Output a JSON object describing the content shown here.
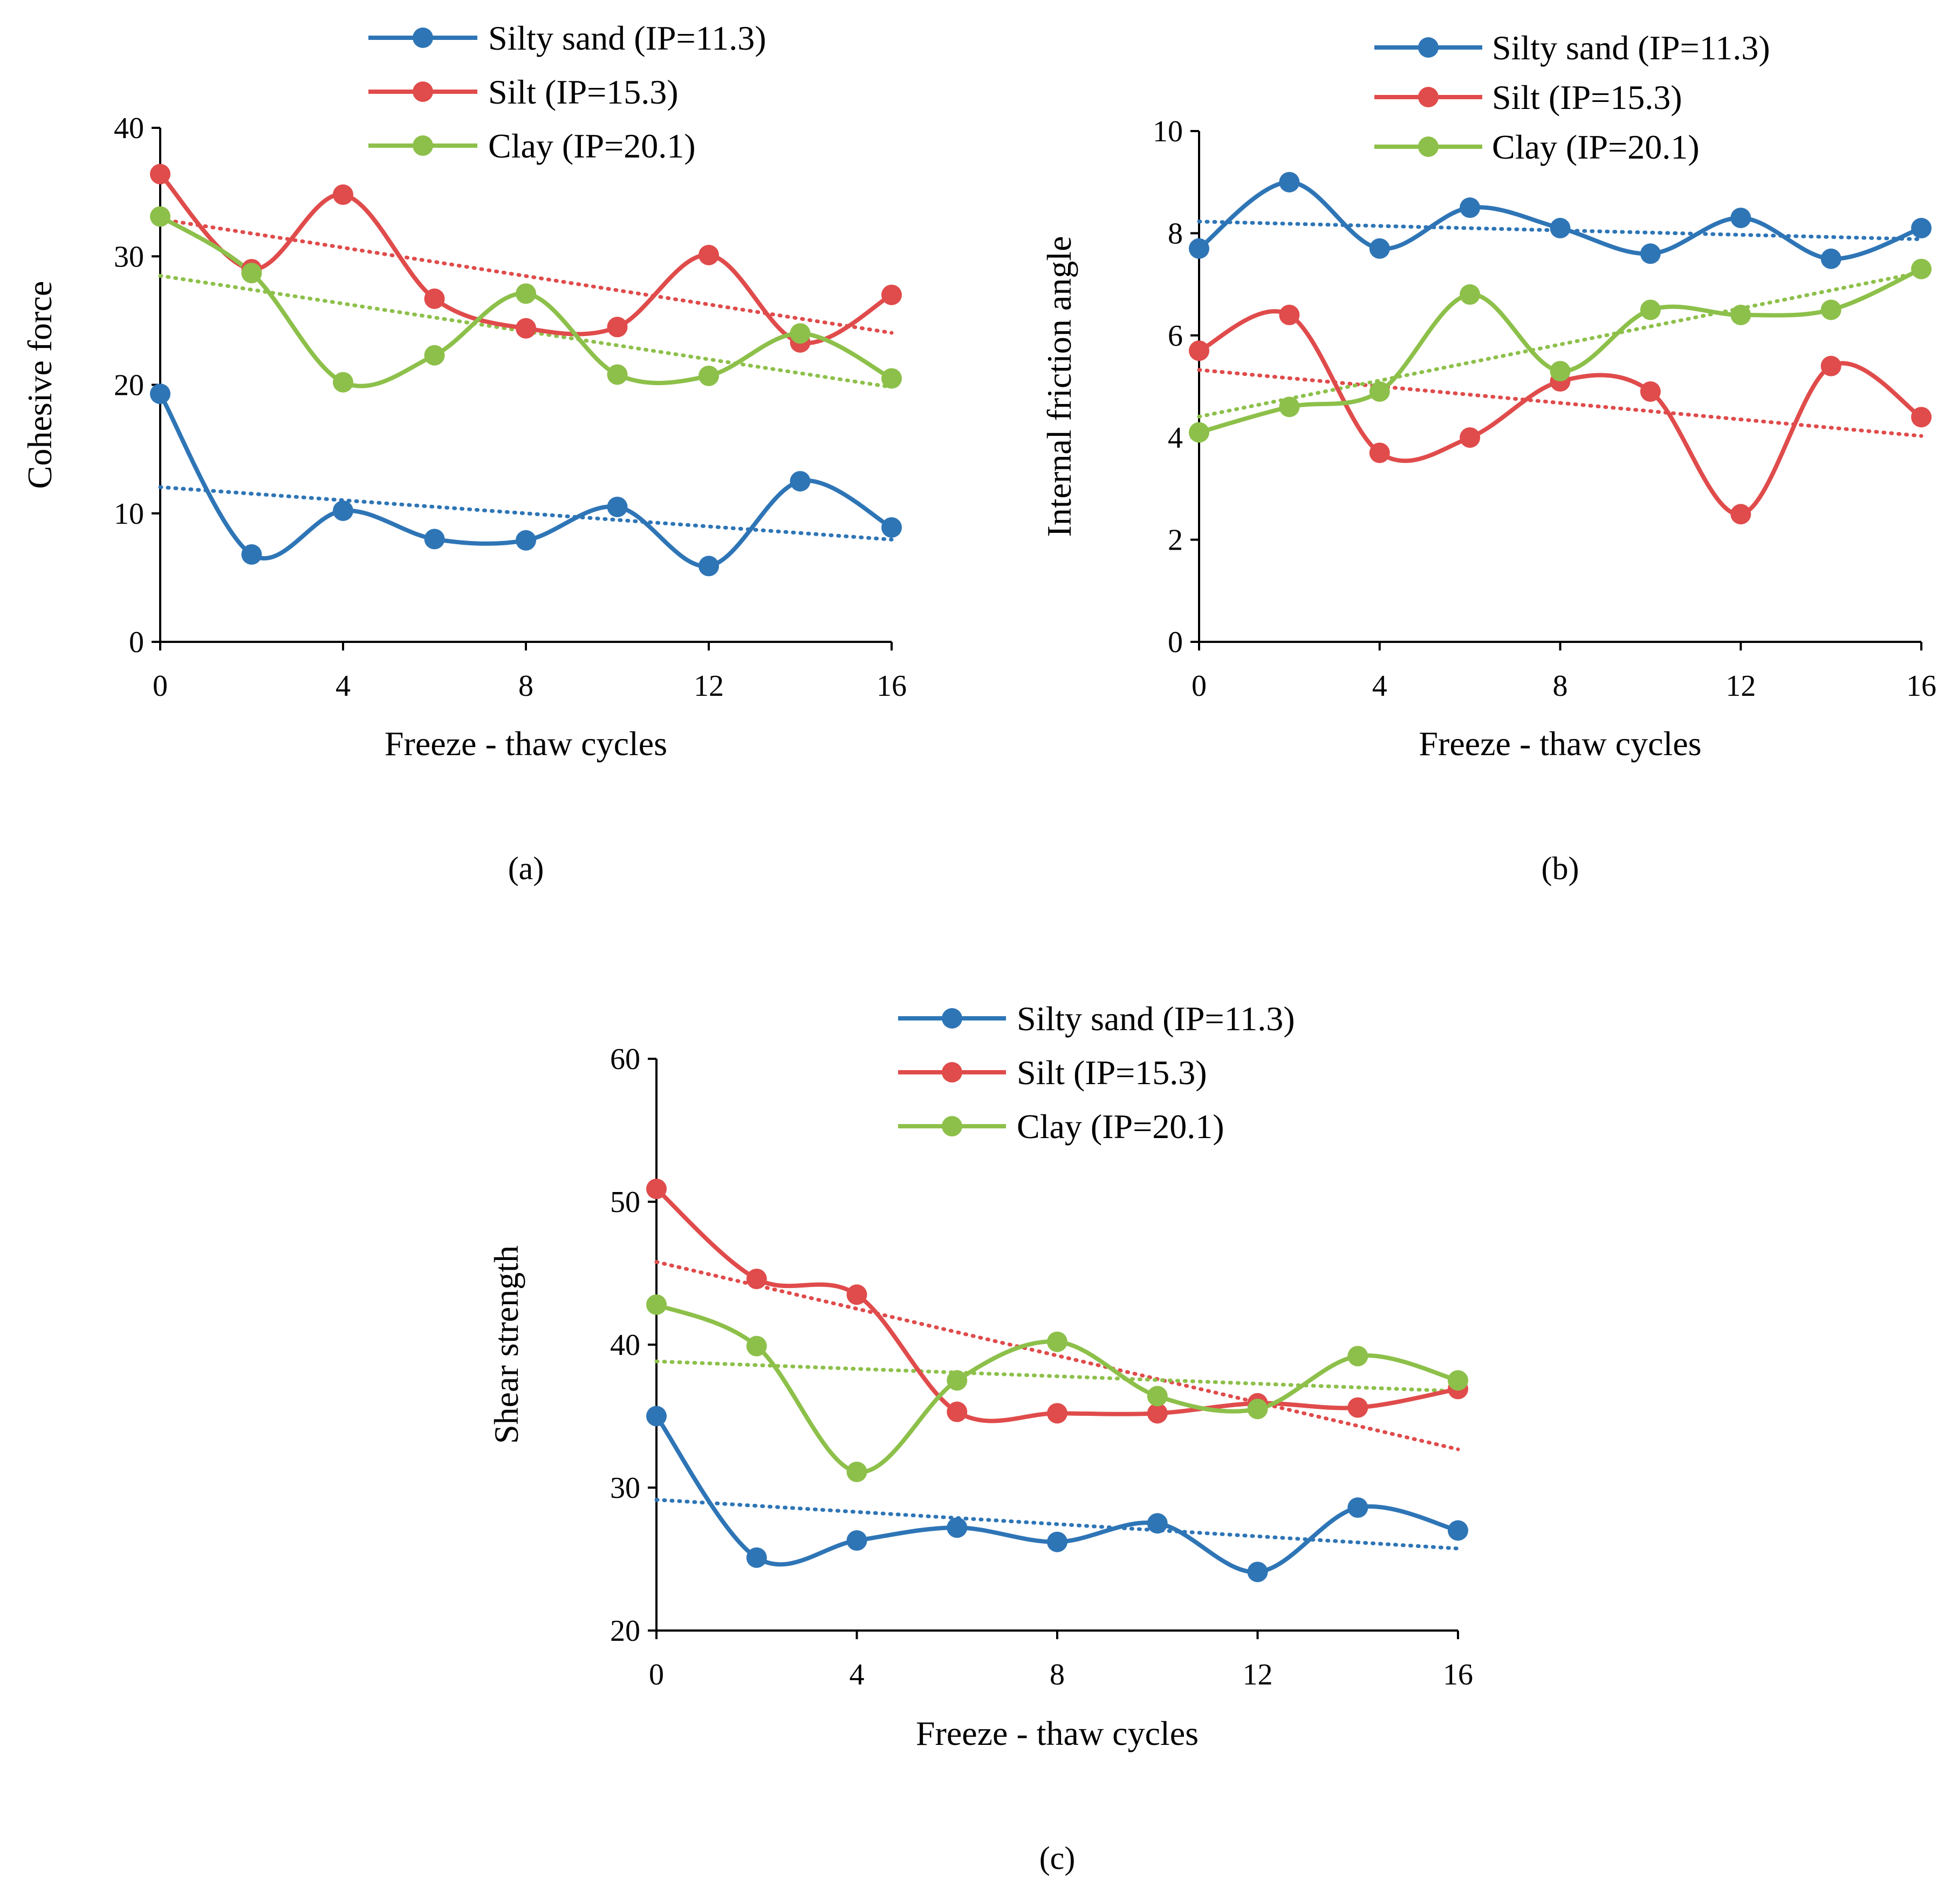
{
  "colors": {
    "silty_sand": "#2E75B6",
    "silt": "#E04B4B",
    "clay": "#8DC04A",
    "axis": "#000000"
  },
  "chart_data": [
    {
      "type": "line",
      "panel_label": "(a)",
      "title": "",
      "xlabel": "Freeze - thaw cycles",
      "ylabel": "Cohesive force",
      "xlim": [
        0,
        16
      ],
      "ylim": [
        0,
        40
      ],
      "xticks": [
        0,
        4,
        8,
        12,
        16
      ],
      "xtick_labels": [
        "0",
        "4",
        "8",
        "12",
        "16"
      ],
      "yticks": [
        0,
        10,
        20,
        30,
        40
      ],
      "ytick_labels": [
        "0",
        "10",
        "20",
        "30",
        "40"
      ],
      "legend_position": "top-right",
      "x": [
        0,
        2,
        4,
        6,
        8,
        10,
        12,
        14,
        16
      ],
      "series": [
        {
          "key": "silty_sand",
          "name": "Silty sand (IP=11.3)",
          "values": [
            19.3,
            6.8,
            10.2,
            8.0,
            7.9,
            10.5,
            5.9,
            12.5,
            8.9
          ],
          "trendline": "linear"
        },
        {
          "key": "silt",
          "name": "Silt (IP=15.3)",
          "values": [
            36.4,
            29.0,
            34.8,
            26.7,
            24.4,
            24.5,
            30.1,
            23.3,
            27.0
          ],
          "trendline": "linear"
        },
        {
          "key": "clay",
          "name": "Clay (IP=20.1)",
          "values": [
            33.1,
            28.7,
            20.2,
            22.3,
            27.1,
            20.8,
            20.7,
            24.0,
            20.5
          ],
          "trendline": "linear"
        }
      ]
    },
    {
      "type": "line",
      "panel_label": "(b)",
      "title": "",
      "xlabel": "Freeze - thaw cycles",
      "ylabel": "Internal friction angle",
      "xlim": [
        0,
        16
      ],
      "ylim": [
        0,
        10
      ],
      "xticks": [
        0,
        4,
        8,
        12,
        16
      ],
      "xtick_labels": [
        "0",
        "4",
        "8",
        "12",
        "16"
      ],
      "yticks": [
        0,
        2,
        4,
        6,
        8,
        10
      ],
      "ytick_labels": [
        "0",
        "2",
        "4",
        "6",
        "8",
        "10"
      ],
      "legend_position": "top-right",
      "x": [
        0,
        2,
        4,
        6,
        8,
        10,
        12,
        14,
        16
      ],
      "series": [
        {
          "key": "silty_sand",
          "name": "Silty sand (IP=11.3)",
          "values": [
            7.7,
            9.0,
            7.7,
            8.5,
            8.1,
            7.6,
            8.3,
            7.5,
            8.1
          ],
          "trendline": "linear"
        },
        {
          "key": "silt",
          "name": "Silt (IP=15.3)",
          "values": [
            5.7,
            6.4,
            3.7,
            4.0,
            5.1,
            4.9,
            2.5,
            5.4,
            4.4
          ],
          "trendline": "linear"
        },
        {
          "key": "clay",
          "name": "Clay (IP=20.1)",
          "values": [
            4.1,
            4.6,
            4.9,
            6.8,
            5.3,
            6.5,
            6.4,
            6.5,
            7.3
          ],
          "trendline": "linear"
        }
      ]
    },
    {
      "type": "line",
      "panel_label": "(c)",
      "title": "",
      "xlabel": "Freeze - thaw cycles",
      "ylabel": "Shear strength",
      "xlim": [
        0,
        16
      ],
      "ylim": [
        20,
        60
      ],
      "xticks": [
        0,
        4,
        8,
        12,
        16
      ],
      "xtick_labels": [
        "0",
        "4",
        "8",
        "12",
        "16"
      ],
      "yticks": [
        20,
        30,
        40,
        50,
        60
      ],
      "ytick_labels": [
        "20",
        "30",
        "40",
        "50",
        "60"
      ],
      "legend_position": "top-right",
      "x": [
        0,
        2,
        4,
        6,
        8,
        10,
        12,
        14,
        16
      ],
      "series": [
        {
          "key": "silty_sand",
          "name": "Silty sand (IP=11.3)",
          "values": [
            35.0,
            25.1,
            26.3,
            27.2,
            26.2,
            27.5,
            24.1,
            28.6,
            27.0
          ],
          "trendline": "linear"
        },
        {
          "key": "silt",
          "name": "Silt (IP=15.3)",
          "values": [
            50.9,
            44.6,
            43.5,
            35.3,
            35.2,
            35.2,
            35.9,
            35.6,
            36.9
          ],
          "trendline": "linear"
        },
        {
          "key": "clay",
          "name": "Clay (IP=20.1)",
          "values": [
            42.8,
            39.9,
            31.1,
            37.5,
            40.2,
            36.4,
            35.5,
            39.2,
            37.5
          ],
          "trendline": "linear"
        }
      ]
    }
  ]
}
